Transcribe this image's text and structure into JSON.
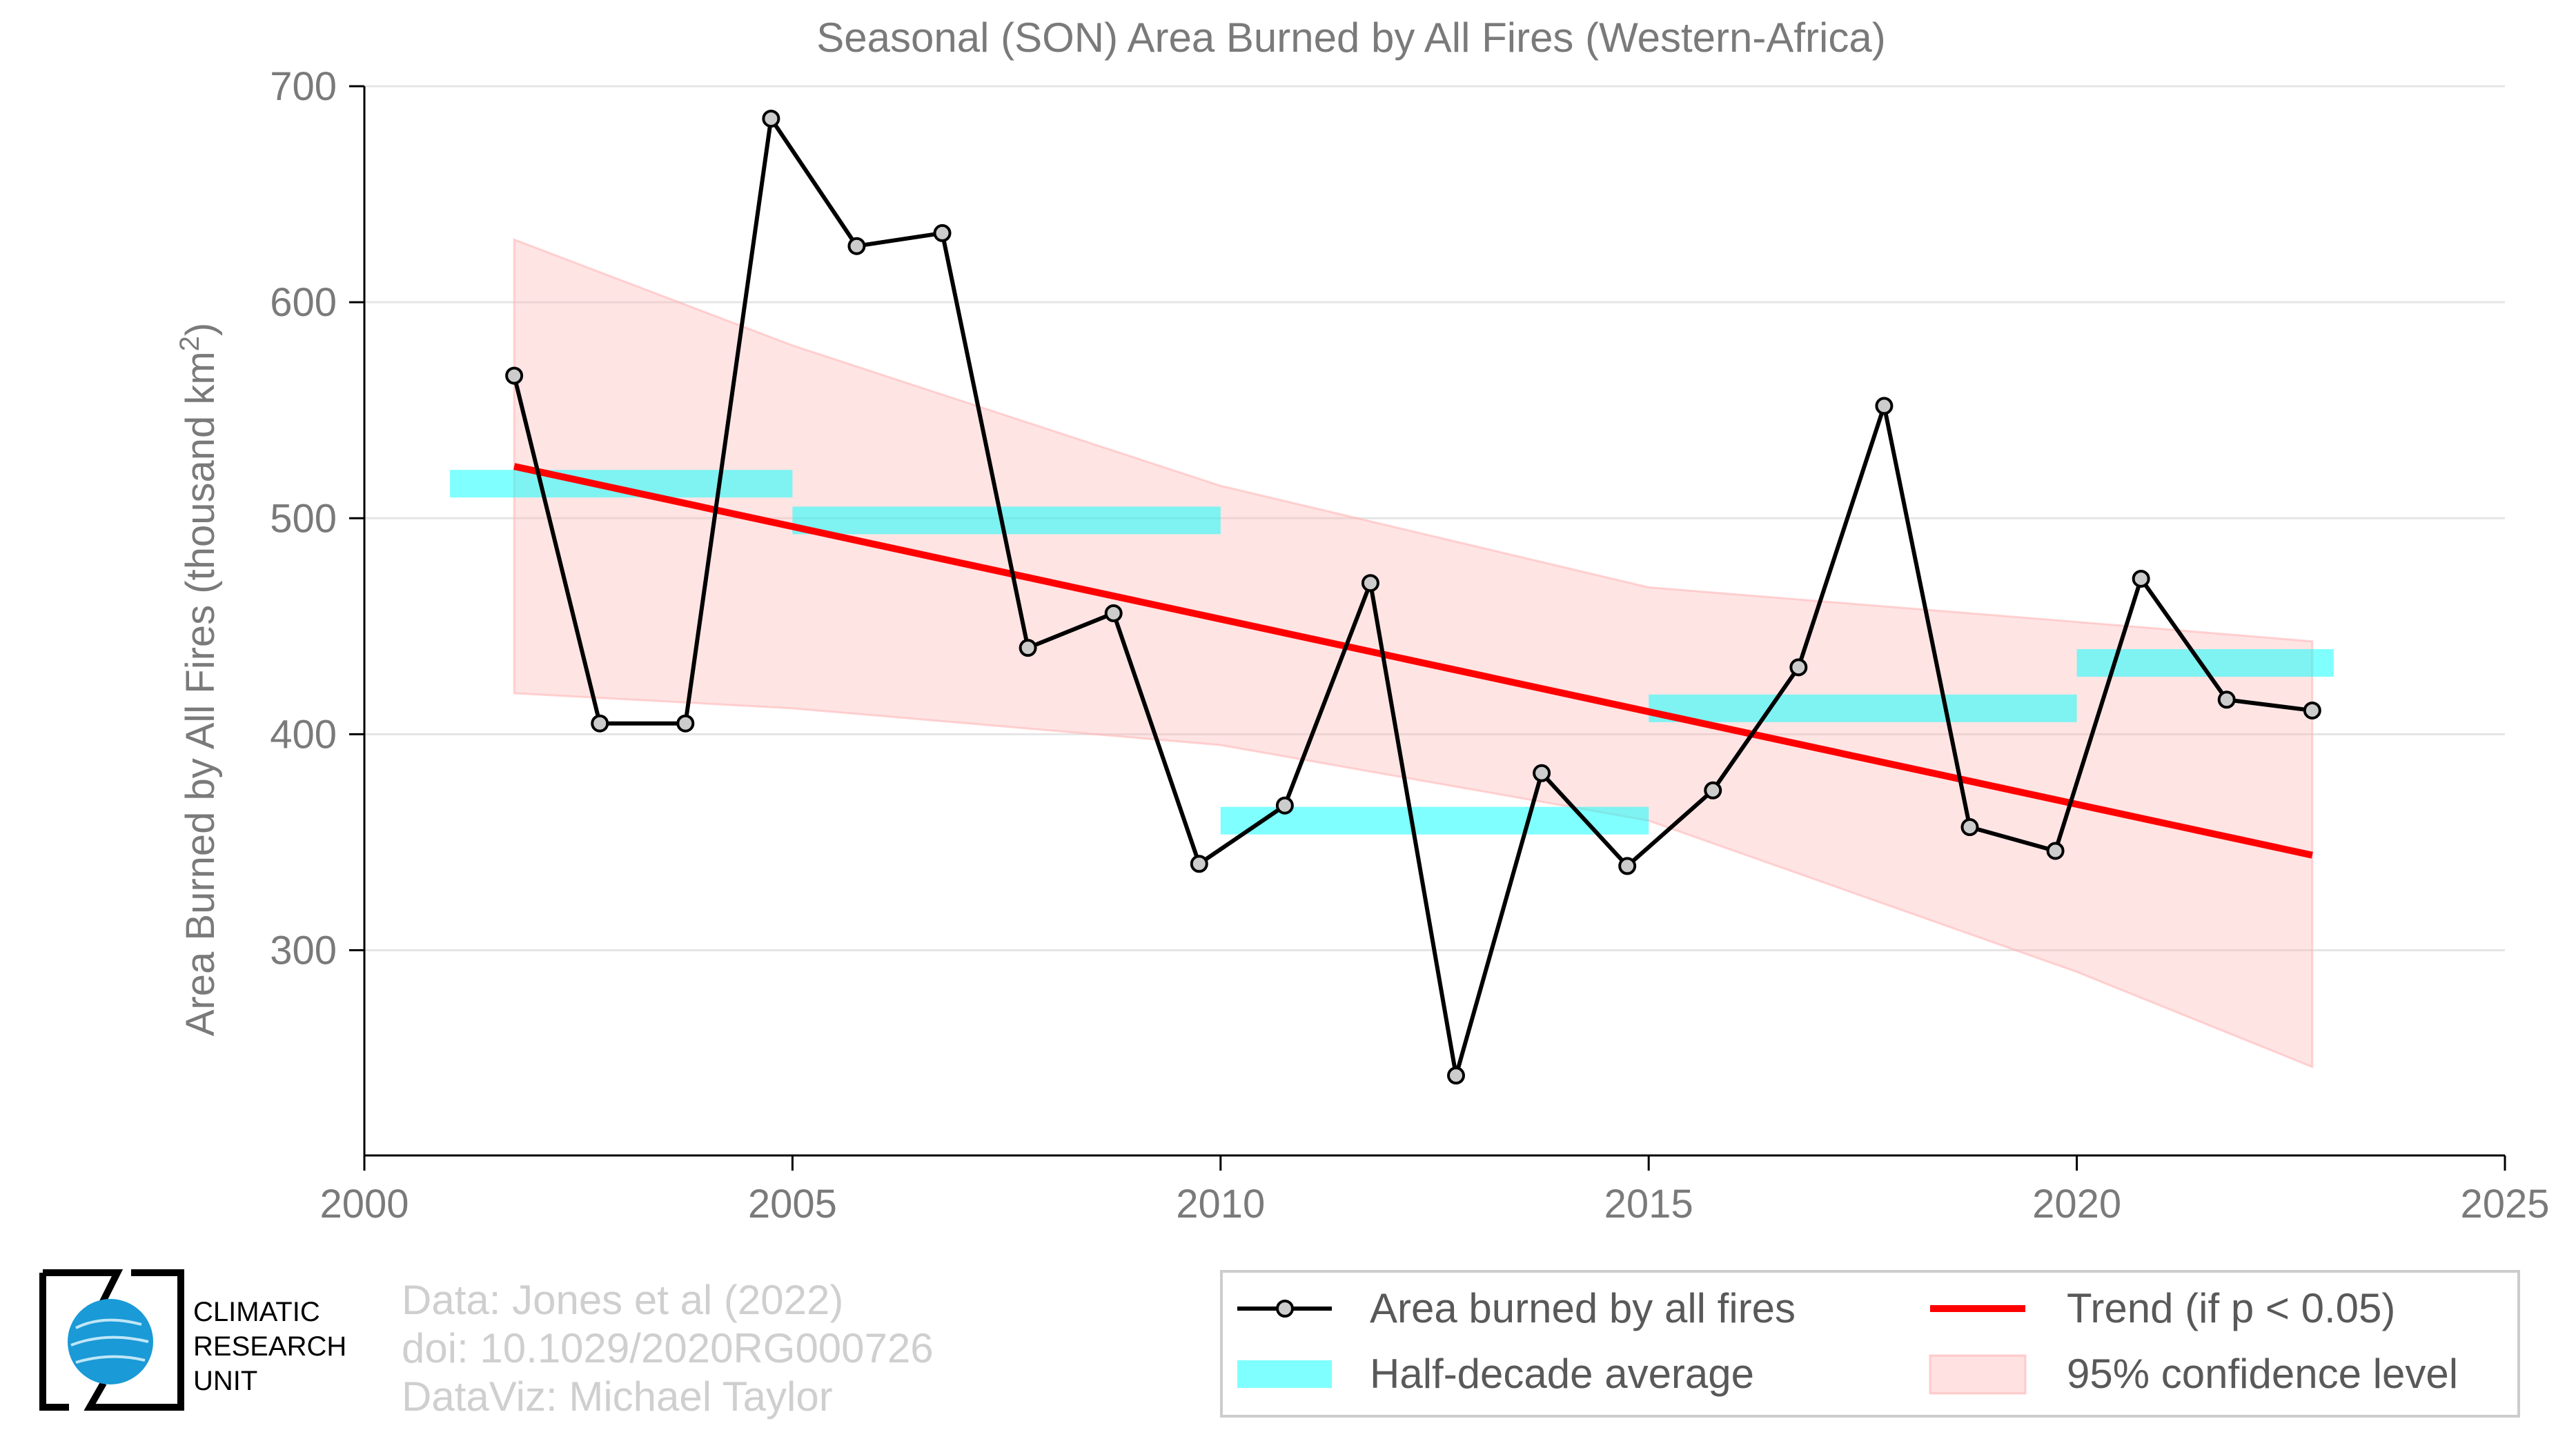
{
  "chart_data": {
    "type": "line",
    "title": "Seasonal (SON) Area Burned by All Fires (Western-Africa)",
    "ylabel_main": "Area Burned by All Fires (thousand km",
    "ylabel_sup": "2",
    "ylabel_close": ")",
    "xlabel": "",
    "xlim": [
      2000,
      2025
    ],
    "ylim": [
      205,
      700
    ],
    "xticks": [
      2000,
      2005,
      2010,
      2015,
      2020,
      2025
    ],
    "yticks": [
      300,
      400,
      500,
      600,
      700
    ],
    "grid": "horizontal",
    "legend_position": "bottom-right",
    "series": [
      {
        "name": "Area burned by all fires",
        "color": "#000000",
        "x": [
          2001.75,
          2002.75,
          2003.75,
          2004.75,
          2005.75,
          2006.75,
          2007.75,
          2008.75,
          2009.75,
          2010.75,
          2011.75,
          2012.75,
          2013.75,
          2014.75,
          2015.75,
          2016.75,
          2017.75,
          2018.75,
          2019.75,
          2020.75,
          2021.75,
          2022.75
        ],
        "y": [
          566,
          405,
          405,
          685,
          626,
          632,
          440,
          456,
          340,
          367,
          470,
          242,
          382,
          339,
          374,
          431,
          552,
          357,
          346,
          472,
          416,
          411
        ]
      }
    ],
    "half_decade_averages": {
      "name": "Half-decade average",
      "color": "#00ffff",
      "segments": [
        {
          "x_start": 2001,
          "x_end": 2005,
          "y": 516
        },
        {
          "x_start": 2005,
          "x_end": 2010,
          "y": 499
        },
        {
          "x_start": 2010,
          "x_end": 2015,
          "y": 360
        },
        {
          "x_start": 2015,
          "x_end": 2020,
          "y": 412
        },
        {
          "x_start": 2020,
          "x_end": 2023,
          "y": 433
        }
      ]
    },
    "trend": {
      "name": "Trend (if p < 0.05)",
      "color": "#ff0000",
      "x": [
        2001.75,
        2022.75
      ],
      "y": [
        524,
        344
      ]
    },
    "confidence_band": {
      "name": "95% confidence level",
      "color": "#ffb3b3",
      "x": [
        2001.75,
        2005,
        2010,
        2015,
        2020,
        2022.75
      ],
      "upper": [
        629,
        580,
        515,
        468,
        452,
        443
      ],
      "lower": [
        419,
        412,
        395,
        360,
        290,
        246
      ]
    }
  },
  "legend": {
    "items": [
      {
        "label": "Area burned by all fires"
      },
      {
        "label": "Trend (if p < 0.05)"
      },
      {
        "label": "Half-decade average"
      },
      {
        "label": "95% confidence level"
      }
    ]
  },
  "credits": {
    "line1": "Data: Jones et al (2022)",
    "line2": "doi: 10.1029/2020RG000726",
    "line3": "DataViz: Michael Taylor"
  },
  "logo": {
    "line1": "CLIMATIC",
    "line2": "RESEARCH",
    "line3": "UNIT",
    "globe_color": "#1a9ad6"
  }
}
